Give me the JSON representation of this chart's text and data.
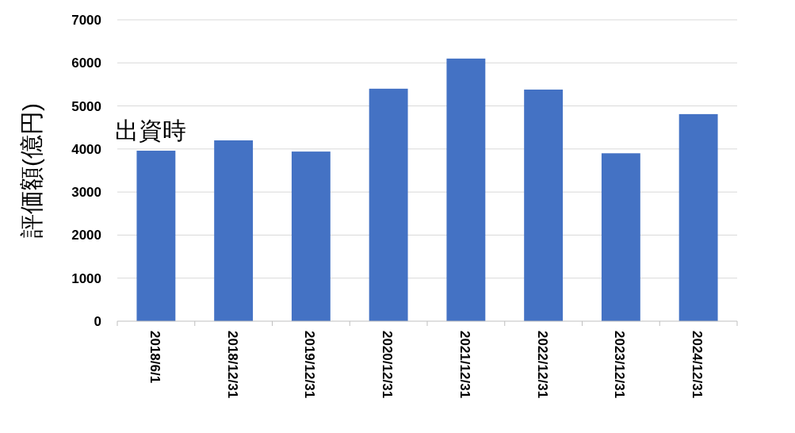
{
  "chart_data": {
    "type": "bar",
    "ylabel": "評価額(億円)",
    "categories": [
      "2018/6/1",
      "2018/12/31",
      "2019/12/31",
      "2020/12/31",
      "2021/12/31",
      "2022/12/31",
      "2023/12/31",
      "2024/12/31"
    ],
    "values": [
      3960,
      4200,
      3940,
      5400,
      6100,
      5380,
      3900,
      4810
    ],
    "color": "#4472c4",
    "ylim": [
      0,
      7000
    ],
    "yticks": [
      0,
      1000,
      2000,
      3000,
      4000,
      5000,
      6000,
      7000
    ],
    "grid": "y",
    "annotations": [
      {
        "text": "出資時",
        "x": "2018/6/1",
        "y": 3960
      }
    ]
  }
}
